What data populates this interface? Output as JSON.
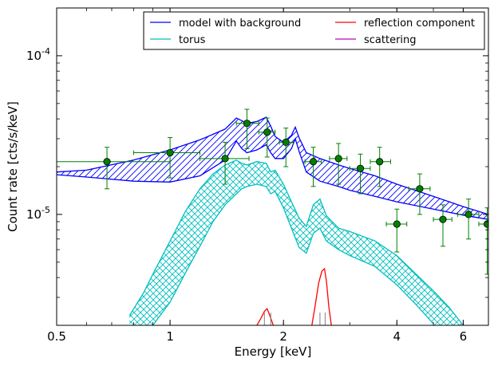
{
  "chart_data": {
    "type": "line",
    "title": "",
    "xlabel": "Energy [keV]",
    "ylabel": "Count rate [cts/s/keV]",
    "xscale": "log",
    "yscale": "log",
    "xlim": [
      0.5,
      7.0
    ],
    "ylim": [
      2e-06,
      0.0002
    ],
    "grid": false,
    "legend_position": "top-right",
    "legend_columns": 2,
    "x_ticks": [
      {
        "value": 0.5,
        "label": "0.5"
      },
      {
        "value": 1,
        "label": "1"
      },
      {
        "value": 2,
        "label": "2"
      },
      {
        "value": 4,
        "label": "4"
      },
      {
        "value": 6,
        "label": "6"
      }
    ],
    "y_ticks": [
      {
        "value": 1e-05,
        "mantissa": "10",
        "exponent": "-5"
      },
      {
        "value": 0.0001,
        "mantissa": "10",
        "exponent": "-4"
      }
    ],
    "series": [
      {
        "name": "model with background",
        "color": "#0000ff",
        "kind": "band",
        "hatch": "diagonal",
        "x": [
          0.5,
          0.6,
          0.8,
          1.0,
          1.2,
          1.4,
          1.5,
          1.55,
          1.6,
          1.7,
          1.8,
          1.85,
          1.9,
          2.0,
          2.1,
          2.15,
          2.2,
          2.3,
          2.5,
          2.8,
          3.0,
          3.5,
          4.0,
          5.0,
          6.0,
          7.0
        ],
        "upper": [
          1.85e-05,
          1.9e-05,
          2.2e-05,
          2.55e-05,
          2.95e-05,
          3.45e-05,
          4.05e-05,
          3.9e-05,
          3.75e-05,
          3.85e-05,
          4.1e-05,
          3.6e-05,
          3.1e-05,
          2.85e-05,
          3.15e-05,
          3.55e-05,
          3.05e-05,
          2.45e-05,
          2.25e-05,
          2.05e-05,
          1.95e-05,
          1.75e-05,
          1.55e-05,
          1.3e-05,
          1.12e-05,
          1e-05
        ],
        "lower": [
          1.78e-05,
          1.72e-05,
          1.62e-05,
          1.6e-05,
          1.75e-05,
          2.2e-05,
          2.9e-05,
          2.6e-05,
          2.45e-05,
          2.55e-05,
          2.75e-05,
          2.45e-05,
          2.25e-05,
          2.25e-05,
          2.6e-05,
          3e-05,
          2.5e-05,
          1.85e-05,
          1.62e-05,
          1.5e-05,
          1.42e-05,
          1.3e-05,
          1.2e-05,
          1.08e-05,
          9.9e-06,
          9.3e-06
        ]
      },
      {
        "name": "torus",
        "color": "#00bfbf",
        "kind": "band",
        "hatch": "cross",
        "x": [
          0.78,
          0.85,
          0.9,
          1.0,
          1.1,
          1.2,
          1.3,
          1.4,
          1.5,
          1.55,
          1.6,
          1.7,
          1.8,
          1.85,
          1.9,
          2.0,
          2.1,
          2.2,
          2.3,
          2.4,
          2.5,
          2.6,
          2.8,
          3.0,
          3.5,
          4.0,
          4.5,
          5.0,
          5.5,
          6.0
        ],
        "upper": [
          2.3e-06,
          3.2e-06,
          4.2e-06,
          6.8e-06,
          1.05e-05,
          1.45e-05,
          1.8e-05,
          2.05e-05,
          2.2e-05,
          2.1e-05,
          2.05e-05,
          2.15e-05,
          2.1e-05,
          1.85e-05,
          1.9e-05,
          1.55e-05,
          1.2e-05,
          9.5e-06,
          8.4e-06,
          1.15e-05,
          1.25e-05,
          9.8e-06,
          8.2e-06,
          7.8e-06,
          6.8e-06,
          5.5e-06,
          4.2e-06,
          3.3e-06,
          2.6e-06,
          2e-06
        ],
        "lower": [
          null,
          null,
          2e-06,
          2.8e-06,
          4.3e-06,
          6.3e-06,
          9e-06,
          1.15e-05,
          1.35e-05,
          1.45e-05,
          1.5e-05,
          1.55e-05,
          1.5e-05,
          1.35e-05,
          1.4e-05,
          1.1e-05,
          8.2e-06,
          6.2e-06,
          5.7e-06,
          7.6e-06,
          8.2e-06,
          6.8e-06,
          6e-06,
          5.5e-06,
          4.7e-06,
          3.6e-06,
          2.7e-06,
          2.05e-06,
          null,
          null
        ]
      },
      {
        "name": "reflection component",
        "color": "#ff0000",
        "kind": "line",
        "lines": [
          {
            "x": [
              1.7,
              1.74,
              1.78,
              1.81,
              1.84,
              1.88
            ],
            "y": [
              2e-06,
              2.2e-06,
              2.45e-06,
              2.55e-06,
              2.3e-06,
              2e-06
            ]
          },
          {
            "x": [
              2.38,
              2.43,
              2.48,
              2.53,
              2.57,
              2.6,
              2.64,
              2.68
            ],
            "y": [
              2e-06,
              2.7e-06,
              3.7e-06,
              4.4e-06,
              4.55e-06,
              3.8e-06,
              2.6e-06,
              2e-06
            ]
          }
        ],
        "ticks": [
          1.78,
          1.85,
          2.5,
          2.58
        ]
      },
      {
        "name": "scattering",
        "color": "#bf00bf",
        "kind": "line",
        "lines": []
      }
    ],
    "data_points": {
      "color": "#008000",
      "points": [
        {
          "x": 0.68,
          "xerr": [
            0.5,
            1.0
          ],
          "y": 2.15e-05,
          "yerr": [
            1.45e-05,
            2.65e-05
          ]
        },
        {
          "x": 1.0,
          "xerr": [
            0.8,
            1.2
          ],
          "y": 2.45e-05,
          "yerr": [
            1.7e-05,
            3.05e-05
          ]
        },
        {
          "x": 1.4,
          "xerr": [
            1.2,
            1.62
          ],
          "y": 2.25e-05,
          "yerr": [
            1.55e-05,
            2.85e-05
          ]
        },
        {
          "x": 1.6,
          "xerr": [
            1.5,
            1.72
          ],
          "y": 3.75e-05,
          "yerr": [
            2.6e-05,
            4.6e-05
          ]
        },
        {
          "x": 1.81,
          "xerr": [
            1.72,
            1.9
          ],
          "y": 3.3e-05,
          "yerr": [
            2.3e-05,
            4.05e-05
          ]
        },
        {
          "x": 2.03,
          "xerr": [
            1.95,
            2.12
          ],
          "y": 2.85e-05,
          "yerr": [
            2e-05,
            3.5e-05
          ]
        },
        {
          "x": 2.4,
          "xerr": [
            2.28,
            2.52
          ],
          "y": 2.15e-05,
          "yerr": [
            1.5e-05,
            2.65e-05
          ]
        },
        {
          "x": 2.8,
          "xerr": [
            2.65,
            2.95
          ],
          "y": 2.25e-05,
          "yerr": [
            1.55e-05,
            2.8e-05
          ]
        },
        {
          "x": 3.2,
          "xerr": [
            3.0,
            3.4
          ],
          "y": 1.95e-05,
          "yerr": [
            1.35e-05,
            2.4e-05
          ]
        },
        {
          "x": 3.6,
          "xerr": [
            3.4,
            3.85
          ],
          "y": 2.15e-05,
          "yerr": [
            1.5e-05,
            2.65e-05
          ]
        },
        {
          "x": 4.0,
          "xerr": [
            3.75,
            4.25
          ],
          "y": 8.7e-06,
          "yerr": [
            5.8e-06,
            1.08e-05
          ]
        },
        {
          "x": 4.6,
          "xerr": [
            4.3,
            4.9
          ],
          "y": 1.45e-05,
          "yerr": [
            1e-05,
            1.8e-05
          ]
        },
        {
          "x": 5.3,
          "xerr": [
            5.0,
            5.6
          ],
          "y": 9.3e-06,
          "yerr": [
            6.3e-06,
            1.15e-05
          ]
        },
        {
          "x": 6.2,
          "xerr": [
            5.8,
            6.6
          ],
          "y": 1e-05,
          "yerr": [
            7e-06,
            1.25e-05
          ]
        },
        {
          "x": 6.95,
          "xerr": [
            6.6,
            7.3
          ],
          "y": 8.7e-06,
          "yerr": [
            4.2e-06,
            1.1e-05
          ]
        }
      ]
    }
  }
}
